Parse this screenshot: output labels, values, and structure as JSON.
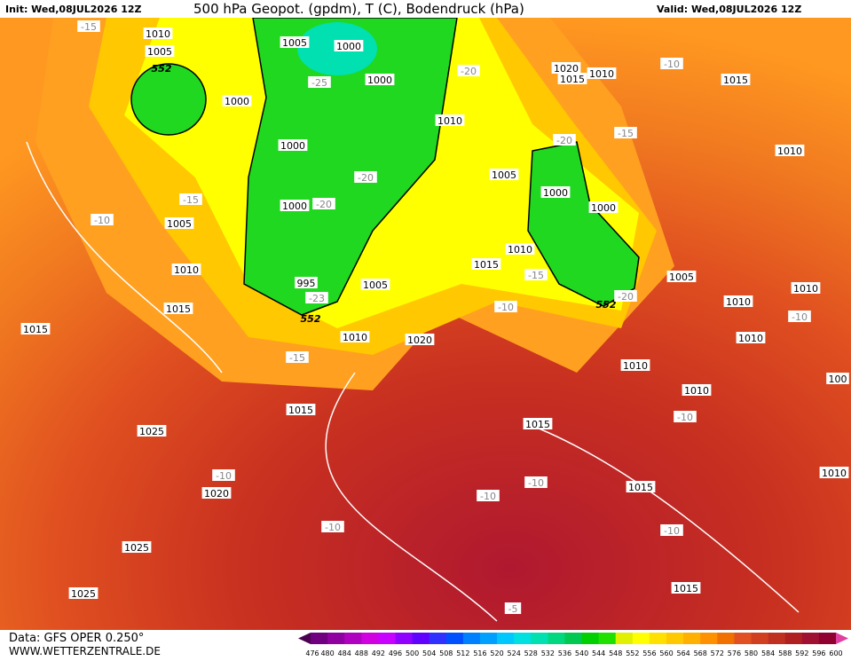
{
  "header": {
    "init": "Init: Wed,08JUL2026 12Z",
    "title": "500 hPa Geopot. (gpdm), T (C), Bodendruck (hPa)",
    "valid": "Valid: Wed,08JUL2026 12Z"
  },
  "footer": {
    "data": "Data: GFS OPER 0.250°",
    "site": "WWW.WETTERZENTRALE.DE"
  },
  "colorbar": {
    "labels": [
      "476",
      "480",
      "484",
      "488",
      "492",
      "496",
      "500",
      "504",
      "508",
      "512",
      "516",
      "520",
      "524",
      "528",
      "532",
      "536",
      "540",
      "544",
      "548",
      "552",
      "556",
      "560",
      "564",
      "568",
      "572",
      "576",
      "580",
      "584",
      "588",
      "592",
      "596",
      "600"
    ],
    "colors": [
      "#4b0050",
      "#700080",
      "#9000a0",
      "#b000c0",
      "#d000e0",
      "#c800ff",
      "#9000ff",
      "#6000ff",
      "#3030ff",
      "#0050ff",
      "#0080ff",
      "#00a0ff",
      "#00c8ff",
      "#00e0e0",
      "#00e0b0",
      "#00d880",
      "#00c850",
      "#00d000",
      "#20e000",
      "#e0f000",
      "#ffff00",
      "#ffe000",
      "#ffc800",
      "#ffb000",
      "#ff9000",
      "#f07000",
      "#e05020",
      "#d04020",
      "#c03020",
      "#b02020",
      "#a01030",
      "#900030",
      "#e040a0"
    ]
  },
  "map": {
    "labels": [
      "-15",
      "1010",
      "1005",
      "552",
      "1000",
      "1005",
      "1000",
      "-25",
      "1000",
      "1020",
      "1010",
      "1015",
      "-20",
      "-10",
      "1015",
      "1010",
      "-20",
      "-15",
      "1000",
      "-15",
      "1005",
      "-20",
      "1000",
      "1000",
      "1000",
      "-20",
      "-10",
      "1005",
      "1010",
      "1010",
      "1015",
      "1010",
      "-15",
      "1005",
      "995",
      "-23",
      "552",
      "552",
      "-20",
      "1005",
      "1010",
      "1010",
      "-10",
      "1015",
      "1015",
      "1010",
      "-10",
      "1020",
      "1010",
      "-15",
      "1010",
      "1010",
      "1015",
      "1015",
      "-10",
      "1025",
      "-10",
      "-10",
      "-10",
      "1015",
      "1020",
      "1010",
      "-10",
      "-10",
      "1025",
      "1015",
      "1025",
      "-5",
      "100"
    ]
  }
}
